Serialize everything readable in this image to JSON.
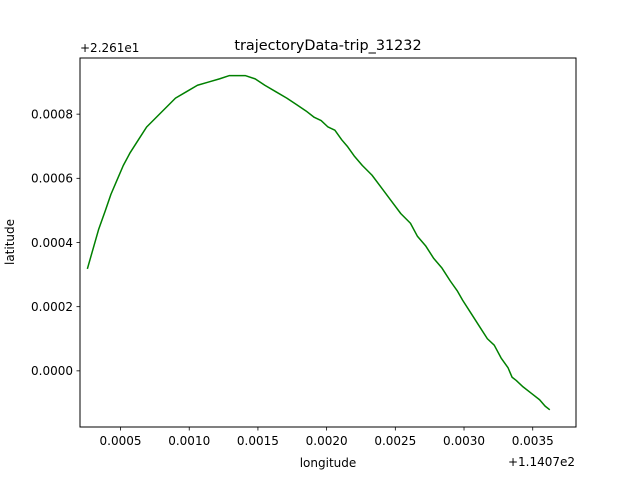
{
  "chart_data": {
    "type": "line",
    "title": "trajectoryData-trip_31232",
    "xlabel": "longitude",
    "ylabel": "latitude",
    "x_offset_label": "+1.1407e2",
    "y_offset_label": "+2.261e1",
    "xlim": [
      0.000205,
      0.000375
    ],
    "ylim": [
      -0.000175,
      0.000975
    ],
    "x_ticks": [
      0.0005,
      0.001,
      0.0015,
      0.002,
      0.0025,
      0.003,
      0.0035
    ],
    "x_tick_labels": [
      "0.0005",
      "0.0010",
      "0.0015",
      "0.0020",
      "0.0025",
      "0.0030",
      "0.0035"
    ],
    "y_ticks": [
      0.0,
      0.0002,
      0.0004,
      0.0006,
      0.0008
    ],
    "y_tick_labels": [
      "0.0000",
      "0.0002",
      "0.0004",
      "0.0006",
      "0.0008"
    ],
    "grid": false,
    "series": [
      {
        "color": "#008000",
        "x": [
          0.00026,
          0.0003,
          0.00034,
          0.00039,
          0.00043,
          0.00048,
          0.00052,
          0.00057,
          0.00063,
          0.00069,
          0.00076,
          0.00083,
          0.0009,
          0.00098,
          0.00106,
          0.00114,
          0.00122,
          0.00129,
          0.00135,
          0.00141,
          0.00148,
          0.00155,
          0.00163,
          0.00171,
          0.00178,
          0.00185,
          0.00191,
          0.00196,
          0.00201,
          0.00206,
          0.00211,
          0.00215,
          0.0022,
          0.00226,
          0.00233,
          0.0024,
          0.00247,
          0.00254,
          0.00261,
          0.00266,
          0.00272,
          0.00278,
          0.00284,
          0.0029,
          0.00295,
          0.00299,
          0.00305,
          0.00311,
          0.00317,
          0.00322,
          0.00327,
          0.00332,
          0.00335,
          0.00338,
          0.00343,
          0.00349,
          0.00355,
          0.00359,
          0.00362
        ],
        "y": [
          0.00032,
          0.00038,
          0.00044,
          0.0005,
          0.00055,
          0.0006,
          0.00064,
          0.00068,
          0.00072,
          0.00076,
          0.00079,
          0.00082,
          0.00085,
          0.00087,
          0.00089,
          0.0009,
          0.00091,
          0.00092,
          0.00092,
          0.00092,
          0.00091,
          0.00089,
          0.00087,
          0.00085,
          0.00083,
          0.00081,
          0.00079,
          0.00078,
          0.00076,
          0.00075,
          0.00072,
          0.0007,
          0.00067,
          0.00064,
          0.00061,
          0.00057,
          0.00053,
          0.00049,
          0.00046,
          0.00042,
          0.00039,
          0.00035,
          0.00032,
          0.00028,
          0.00025,
          0.00022,
          0.00018,
          0.00014,
          0.0001,
          8e-05,
          4e-05,
          1e-05,
          -2e-05,
          -3e-05,
          -5e-05,
          -7e-05,
          -9e-05,
          -0.00011,
          -0.00012
        ]
      }
    ]
  }
}
